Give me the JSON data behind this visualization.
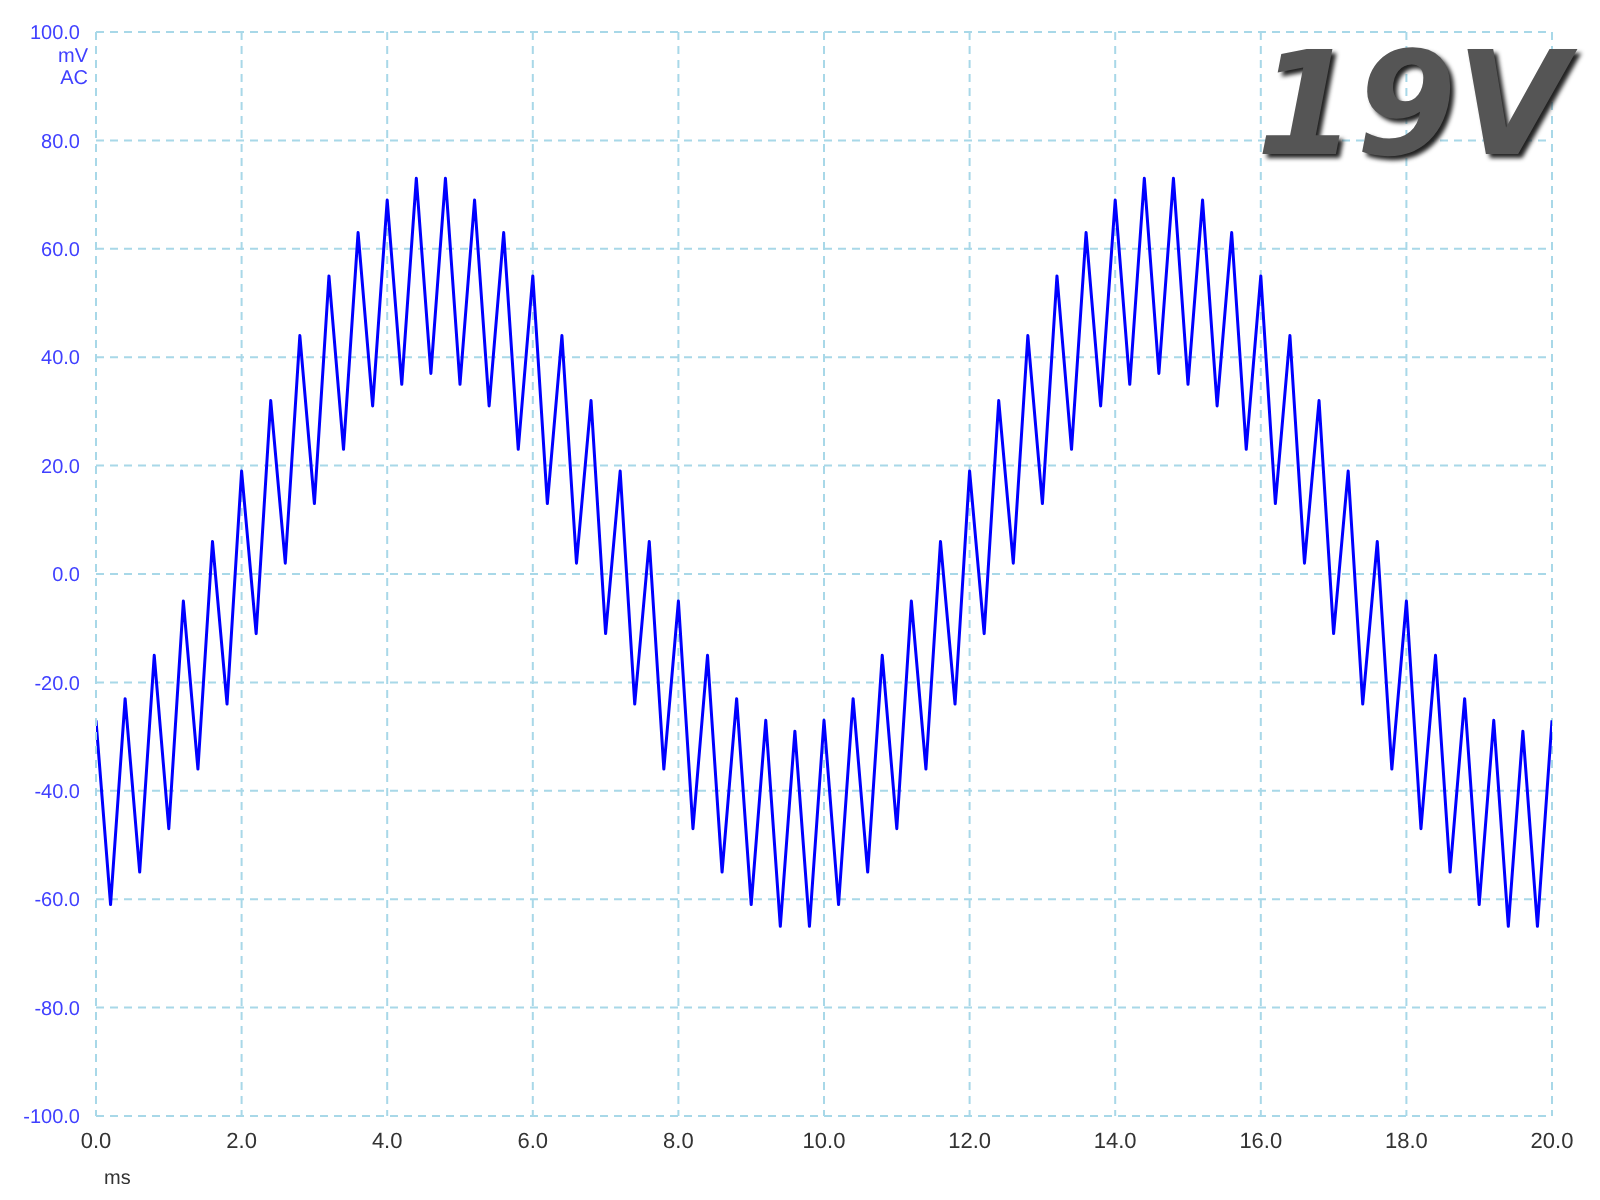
{
  "chart_data": {
    "type": "line",
    "xlabel": "ms",
    "ylabel": "mV AC",
    "annotations": [
      "19V"
    ],
    "grid": true,
    "marker": "none",
    "line_style": "solid",
    "xlim": [
      0,
      20
    ],
    "xticks": [
      {
        "value": 0,
        "label": "0.0"
      },
      {
        "value": 2,
        "label": "2.0"
      },
      {
        "value": 4,
        "label": "4.0"
      },
      {
        "value": 6,
        "label": "6.0"
      },
      {
        "value": 8,
        "label": "8.0"
      },
      {
        "value": 10,
        "label": "10.0"
      },
      {
        "value": 12,
        "label": "12.0"
      },
      {
        "value": 14,
        "label": "14.0"
      },
      {
        "value": 16,
        "label": "16.0"
      },
      {
        "value": 18,
        "label": "18.0"
      },
      {
        "value": 20,
        "label": "20.0"
      }
    ],
    "ylim": [
      -100,
      100
    ],
    "yticks": [
      {
        "value": -100,
        "label": "-100.0"
      },
      {
        "value": -80,
        "label": "-80.0"
      },
      {
        "value": -60,
        "label": "-60.0"
      },
      {
        "value": -40,
        "label": "-40.0"
      },
      {
        "value": -20,
        "label": "-20.0"
      },
      {
        "value": 0,
        "label": "0.0"
      },
      {
        "value": 20,
        "label": "20.0"
      },
      {
        "value": 40,
        "label": "40.0"
      },
      {
        "value": 60,
        "label": "60.0"
      },
      {
        "value": 80,
        "label": "80.0"
      },
      {
        "value": 100,
        "label": "100.0"
      }
    ],
    "x": [
      0,
      0.2,
      0.4,
      0.6,
      0.8,
      1,
      1.2,
      1.4,
      1.6,
      1.8,
      2,
      2.2,
      2.4,
      2.6,
      2.8,
      3,
      3.2,
      3.4,
      3.6,
      3.8,
      4,
      4.2,
      4.4,
      4.6,
      4.8,
      5,
      5.2,
      5.4,
      5.6,
      5.8,
      6,
      6.2,
      6.4,
      6.6,
      6.8,
      7,
      7.2,
      7.4,
      7.6,
      7.8,
      8,
      8.2,
      8.4,
      8.6,
      8.8,
      9,
      9.2,
      9.4,
      9.6,
      9.8,
      10,
      10.2,
      10.4,
      10.6,
      10.8,
      11,
      11.2,
      11.4,
      11.6,
      11.8,
      12,
      12.2,
      12.4,
      12.6,
      12.8,
      13,
      13.2,
      13.4,
      13.6,
      13.8,
      14,
      14.2,
      14.4,
      14.6,
      14.8,
      15,
      15.2,
      15.4,
      15.6,
      15.8,
      16,
      16.2,
      16.4,
      16.6,
      16.8,
      17,
      17.2,
      17.4,
      17.6,
      17.8,
      18,
      18.2,
      18.4,
      18.6,
      18.8,
      19,
      19.2,
      19.4,
      19.6,
      19.8,
      20
    ],
    "series": [
      {
        "color": "#0000ff",
        "values": [
          -27,
          -61,
          -23,
          -55,
          -15,
          -47,
          -5,
          -36,
          6,
          -24,
          19,
          -11,
          32,
          2,
          44,
          13,
          55,
          23,
          63,
          31,
          69,
          35,
          73,
          37,
          73,
          35,
          69,
          31,
          63,
          23,
          55,
          13,
          44,
          2,
          32,
          -11,
          19,
          -24,
          6,
          -36,
          -5,
          -47,
          -15,
          -55,
          -23,
          -61,
          -27,
          -65,
          -29,
          -65,
          -27,
          -61,
          -23,
          -55,
          -15,
          -47,
          -5,
          -36,
          6,
          -24,
          19,
          -11,
          32,
          2,
          44,
          13,
          55,
          23,
          63,
          31,
          69,
          35,
          73,
          37,
          73,
          35,
          69,
          31,
          63,
          23,
          55,
          13,
          44,
          2,
          32,
          -11,
          19,
          -24,
          6,
          -36,
          -5,
          -47,
          -15,
          -55,
          -23,
          -61,
          -27,
          -65,
          -29,
          -65,
          -27
        ]
      }
    ]
  }
}
